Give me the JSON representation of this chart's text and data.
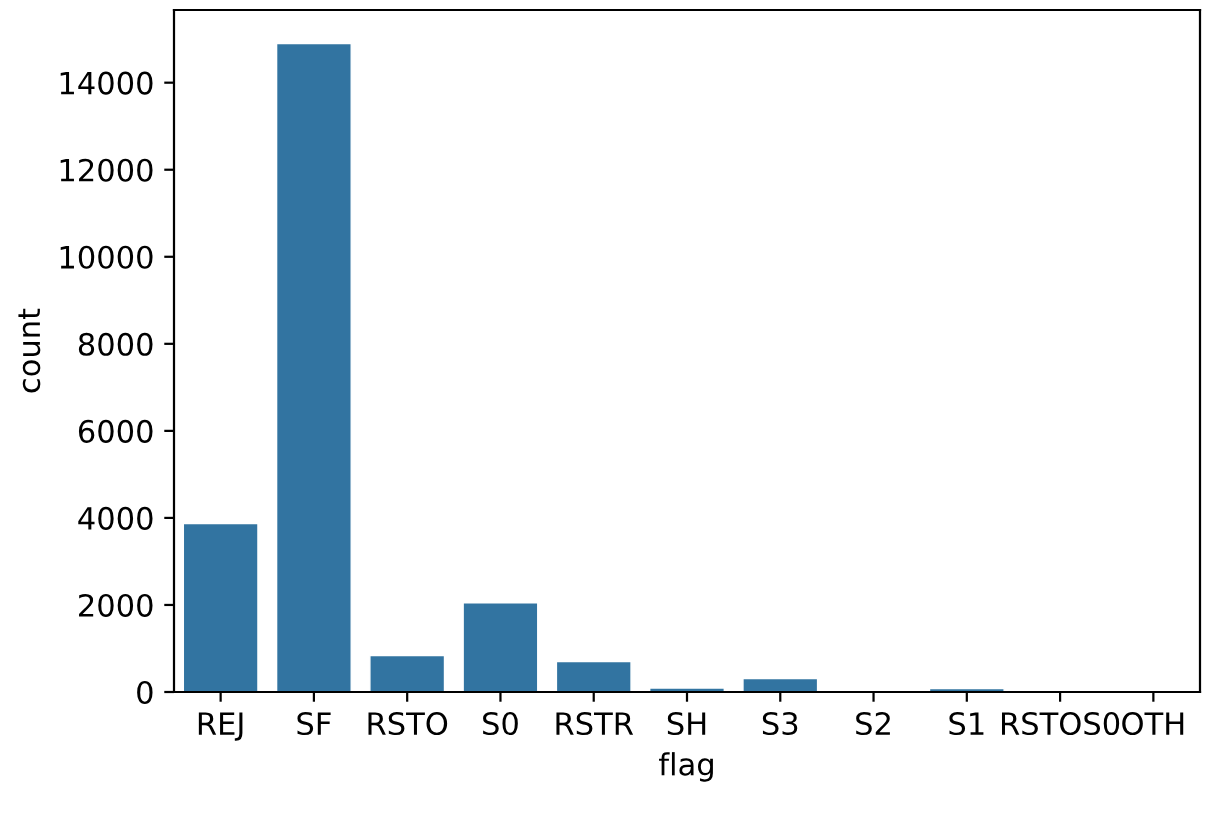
{
  "chart_data": {
    "type": "bar",
    "xlabel": "flag",
    "ylabel": "count",
    "categories": [
      "REJ",
      "SF",
      "RSTO",
      "S0",
      "RSTR",
      "SH",
      "S3",
      "S2",
      "S1",
      "RSTOS0",
      "OTH"
    ],
    "values": [
      3870,
      14900,
      840,
      2050,
      700,
      90,
      310,
      20,
      80,
      10,
      5
    ],
    "color": "#3274a1",
    "ylim": [
      0,
      15670
    ],
    "yticks": [
      0,
      2000,
      4000,
      6000,
      8000,
      10000,
      12000,
      14000
    ],
    "grid": false,
    "legend": false
  }
}
